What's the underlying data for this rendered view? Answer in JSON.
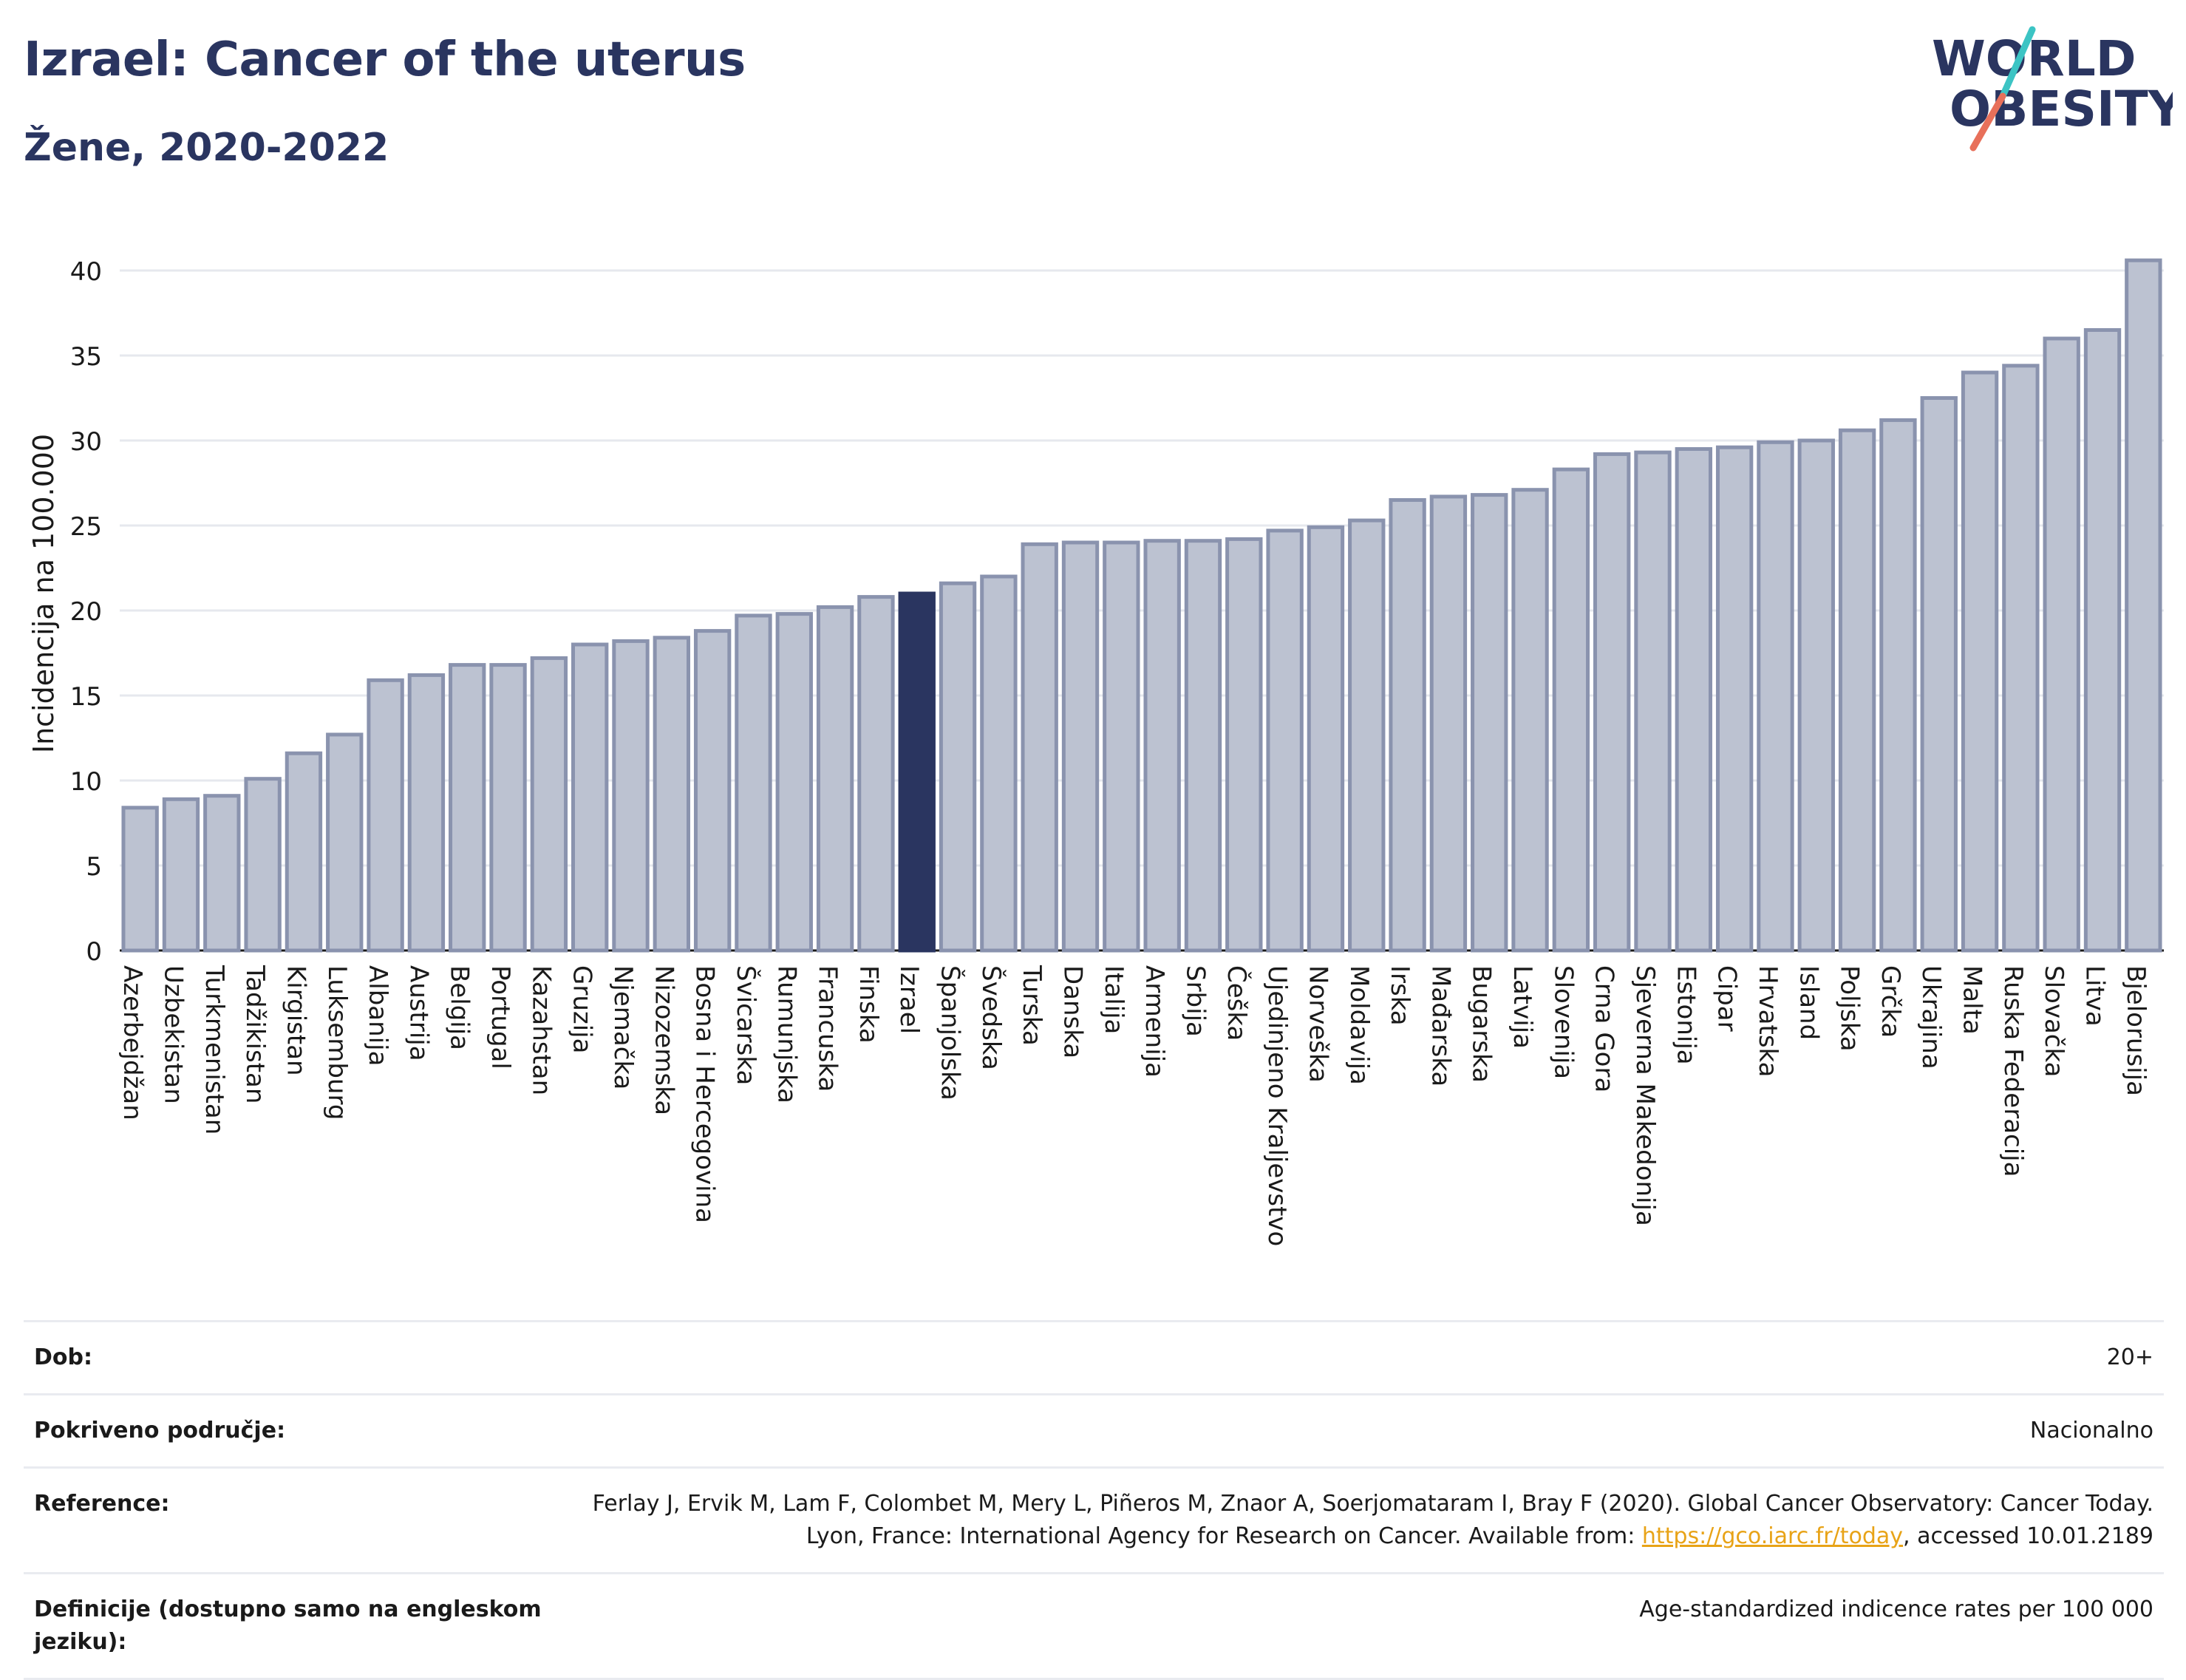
{
  "header": {
    "title": "Izrael: Cancer of the uterus",
    "subtitle": "Žene, 2020-2022"
  },
  "logo": {
    "line1": "WORLD",
    "line2": "OBESITY",
    "stripe_colors": [
      "#3cc4c4",
      "#e8705a"
    ]
  },
  "colors": {
    "bar": "#bcc2d1",
    "bar_stroke": "#8a93ae",
    "highlight": "#2a3560",
    "grid": "#e6e8ee",
    "text": "#2a3560"
  },
  "chart_data": {
    "type": "bar",
    "title": "Izrael: Cancer of the uterus",
    "subtitle": "Žene, 2020-2022",
    "xlabel": "",
    "ylabel": "Incidencija na 100.000",
    "ylim": [
      0,
      42
    ],
    "yticks": [
      0,
      5,
      10,
      15,
      20,
      25,
      30,
      35,
      40
    ],
    "grid": true,
    "highlight": "Izrael",
    "categories": [
      "Azerbejdžan",
      "Uzbekistan",
      "Turkmenistan",
      "Tadžikistan",
      "Kirgistan",
      "Luksemburg",
      "Albanija",
      "Austrija",
      "Belgija",
      "Portugal",
      "Kazahstan",
      "Gruzija",
      "Njemačka",
      "Nizozemska",
      "Bosna i Hercegovina",
      "Švicarska",
      "Rumunjska",
      "Francuska",
      "Finska",
      "Izrael",
      "Španjolska",
      "Švedska",
      "Turska",
      "Danska",
      "Italija",
      "Armenija",
      "Srbija",
      "Češka",
      "Ujedinjeno Kraljevstvo",
      "Norveška",
      "Moldavija",
      "Irska",
      "Mađarska",
      "Bugarska",
      "Latvija",
      "Slovenija",
      "Crna Gora",
      "Sjeverna Makedonija",
      "Estonija",
      "Cipar",
      "Hrvatska",
      "Island",
      "Poljska",
      "Grčka",
      "Ukrajina",
      "Malta",
      "Ruska Federacija",
      "Slovačka",
      "Litva",
      "Bjelorusija"
    ],
    "values": [
      8.4,
      8.9,
      9.1,
      10.1,
      11.6,
      12.7,
      15.9,
      16.2,
      16.8,
      16.8,
      17.2,
      18.0,
      18.2,
      18.4,
      18.8,
      19.7,
      19.8,
      20.2,
      20.8,
      21.0,
      21.6,
      22.0,
      23.9,
      24.0,
      24.0,
      24.1,
      24.1,
      24.2,
      24.7,
      24.9,
      25.3,
      26.5,
      26.7,
      26.8,
      27.1,
      28.3,
      29.2,
      29.3,
      29.5,
      29.6,
      29.9,
      30.0,
      30.6,
      31.2,
      32.5,
      34.0,
      34.4,
      36.0,
      36.5,
      40.6
    ]
  },
  "meta": {
    "rows": [
      {
        "label": "Dob:",
        "value": "20+"
      },
      {
        "label": "Pokriveno područje:",
        "value": "Nacionalno"
      },
      {
        "label": "Reference:",
        "value": "Ferlay J, Ervik M, Lam F, Colombet M, Mery L, Piñeros M, Znaor A, Soerjomataram I, Bray F (2020). Global Cancer Observatory: Cancer Today. Lyon, France: International Agency for Research on Cancer. Available from: ",
        "link": "https://gco.iarc.fr/today",
        "suffix": ", accessed 10.01.2189"
      },
      {
        "label": "Definicije (dostupno samo na engleskom jeziku):",
        "value": "Age-standardized indicence rates per 100 000"
      }
    ]
  }
}
